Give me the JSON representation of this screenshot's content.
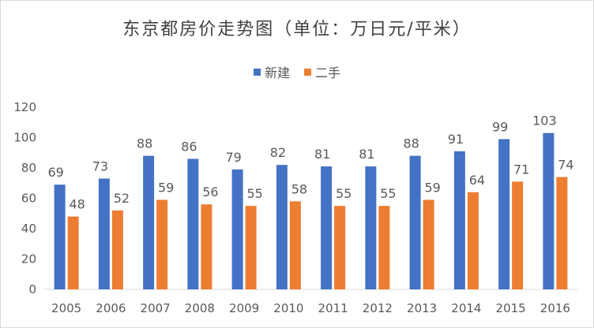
{
  "chart_data": {
    "type": "bar",
    "title": "东京都房价走势图（单位：万日元/平米）",
    "categories": [
      "2005",
      "2006",
      "2007",
      "2008",
      "2009",
      "2010",
      "2011",
      "2012",
      "2013",
      "2014",
      "2015",
      "2016"
    ],
    "series": [
      {
        "name": "新建",
        "color": "#4472c4",
        "values": [
          69,
          73,
          88,
          86,
          79,
          82,
          81,
          81,
          88,
          91,
          99,
          103
        ]
      },
      {
        "name": "二手",
        "color": "#ed7d31",
        "values": [
          48,
          52,
          59,
          56,
          55,
          58,
          55,
          55,
          59,
          64,
          71,
          74
        ]
      }
    ],
    "ylim": [
      0,
      120
    ],
    "yticks": [
      0,
      20,
      40,
      60,
      80,
      100,
      120
    ],
    "xlabel": "",
    "ylabel": "",
    "legend": "top-center",
    "grid": false
  }
}
